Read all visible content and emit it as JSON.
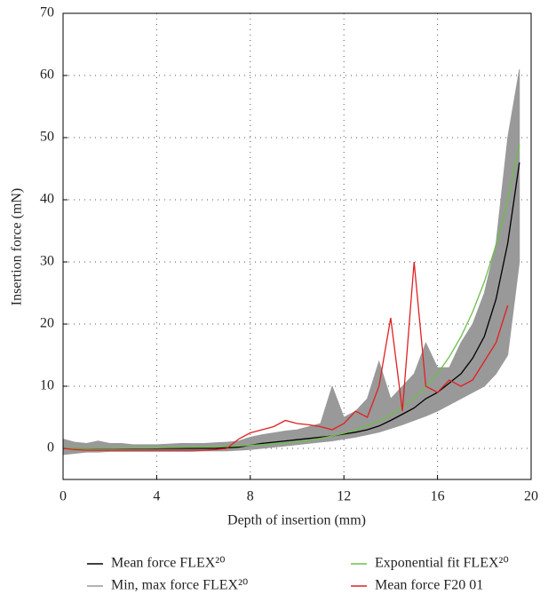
{
  "chart_data": {
    "type": "line",
    "xlabel": "Depth of insertion (mm)",
    "ylabel": "Insertion force (mN)",
    "x": [
      0,
      0.5,
      1,
      1.5,
      2,
      2.5,
      3,
      3.5,
      4,
      4.5,
      5,
      5.5,
      6,
      6.5,
      7,
      7.5,
      8,
      8.5,
      9,
      9.5,
      10,
      10.5,
      11,
      11.5,
      12,
      12.5,
      13,
      13.5,
      14,
      14.5,
      15,
      15.5,
      16,
      16.5,
      17,
      17.5,
      18,
      18.5,
      19,
      19.5
    ],
    "series": [
      {
        "name": "Mean force FLEX²⁰",
        "color": "#000000",
        "values": [
          0,
          0,
          0,
          0,
          0,
          0,
          0,
          0,
          0,
          0,
          0,
          0,
          0,
          0,
          0.1,
          0.2,
          0.5,
          0.8,
          1,
          1.2,
          1.4,
          1.6,
          1.8,
          2,
          2.3,
          2.6,
          3,
          3.6,
          4.5,
          5.5,
          6.5,
          8,
          9,
          10.5,
          12,
          14.5,
          18,
          24,
          33,
          46
        ]
      },
      {
        "name": "Min, max force FLEX²⁰",
        "color": "#999999",
        "type": "band",
        "upper": [
          1.5,
          1,
          0.8,
          1.2,
          0.8,
          0.8,
          0.6,
          0.6,
          0.6,
          0.7,
          0.8,
          0.8,
          0.8,
          0.9,
          1,
          1.2,
          1.8,
          2.2,
          2.5,
          2.8,
          3,
          3.5,
          4,
          10,
          5,
          6,
          8,
          14,
          8,
          10,
          12,
          17,
          13,
          13,
          17,
          20,
          25,
          33,
          50,
          61
        ],
        "lower": [
          -1,
          -0.8,
          -0.6,
          -0.6,
          -0.5,
          -0.5,
          -0.5,
          -0.5,
          -0.5,
          -0.5,
          -0.5,
          -0.5,
          -0.4,
          -0.4,
          -0.4,
          -0.3,
          -0.2,
          0,
          0.2,
          0.4,
          0.6,
          0.8,
          1,
          1.2,
          1.5,
          1.8,
          2.2,
          2.6,
          3.2,
          3.8,
          4.5,
          5.2,
          6,
          7,
          8,
          9,
          10,
          12,
          15,
          30
        ]
      },
      {
        "name": "Exponential fit FLEX²⁰",
        "color": "#6cbf4a",
        "values": [
          0.02,
          0.02,
          0.03,
          0.04,
          0.04,
          0.05,
          0.07,
          0.08,
          0.1,
          0.12,
          0.15,
          0.18,
          0.22,
          0.27,
          0.33,
          0.4,
          0.49,
          0.6,
          0.73,
          0.89,
          1.09,
          1.33,
          1.63,
          1.99,
          2.43,
          2.97,
          3.63,
          4.43,
          5.41,
          6.61,
          8.07,
          9.86,
          12.04,
          14.71,
          17.96,
          21.94,
          26.8,
          32.73,
          39.98,
          48.83
        ]
      },
      {
        "name": "Mean force F20 01",
        "color": "#e02020",
        "values": [
          0,
          -0.2,
          -0.3,
          -0.3,
          -0.3,
          -0.3,
          -0.3,
          -0.3,
          -0.3,
          -0.3,
          -0.3,
          -0.3,
          -0.3,
          -0.2,
          0,
          1.5,
          2.5,
          3,
          3.5,
          4.5,
          4,
          3.8,
          3.5,
          3,
          4,
          6,
          5,
          10,
          21,
          6,
          30,
          10,
          9,
          11,
          10,
          11,
          14,
          17,
          23,
          null
        ]
      }
    ],
    "xlim": [
      0,
      20
    ],
    "xticks": [
      0,
      4,
      8,
      12,
      16,
      20
    ],
    "ylim": [
      -5,
      70
    ],
    "yticks": [
      0,
      10,
      20,
      30,
      40,
      50,
      60,
      70
    ],
    "grid": true,
    "legend": "bottom"
  }
}
